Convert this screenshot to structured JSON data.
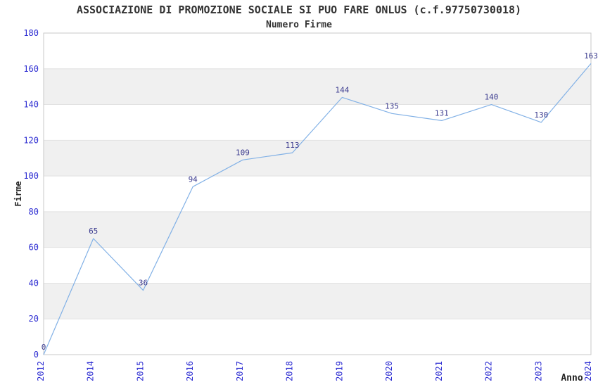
{
  "header": {
    "title": "ASSOCIAZIONE DI PROMOZIONE SOCIALE SI PUO FARE ONLUS (c.f.97750730018)",
    "subtitle": "Numero Firme"
  },
  "chart_data": {
    "type": "line",
    "title": "ASSOCIAZIONE DI PROMOZIONE SOCIALE SI PUO FARE ONLUS (c.f.97750730018)",
    "subtitle": "Numero Firme",
    "xlabel": "Anno",
    "ylabel": "Firme",
    "categories": [
      "2012",
      "2014",
      "2015",
      "2016",
      "2017",
      "2018",
      "2019",
      "2020",
      "2021",
      "2022",
      "2023",
      "2024"
    ],
    "values": [
      0,
      65,
      36,
      94,
      109,
      113,
      144,
      135,
      131,
      140,
      130,
      163
    ],
    "ylim": [
      0,
      180
    ],
    "ytick_step": 20,
    "grid": "horizontal-bands-alternating",
    "legend": "none",
    "point_labels_visible": true,
    "xtick_rotation_degrees": -90,
    "colors": {
      "line": "#82b1e6",
      "tick_label": "#2d2dd2",
      "value_label": "#3b3b8f",
      "band_gray": "#f0f0f0",
      "gridline": "#e2e2e2",
      "plot_border": "#c9c9c9",
      "title_text": "#333333",
      "axis_title_text": "#222222",
      "background": "#ffffff"
    }
  }
}
